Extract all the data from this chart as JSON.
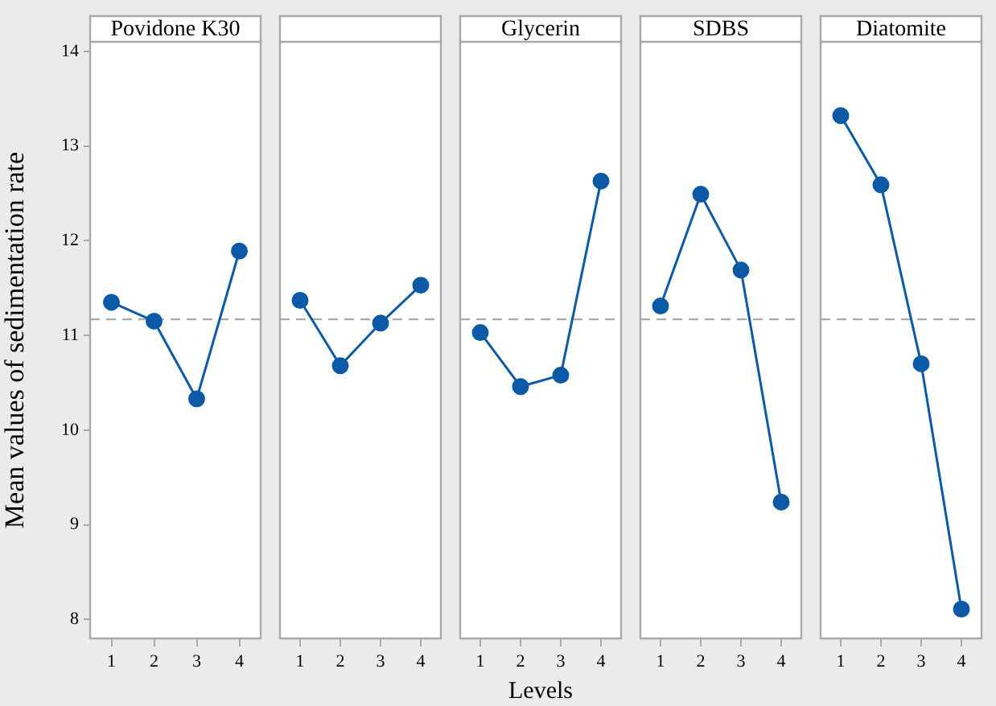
{
  "chart_data": [
    {
      "type": "line",
      "title": "Povidone K30",
      "ylabel": "Mean values of sedimentation rate",
      "categories": [
        "1",
        "2",
        "3",
        "4"
      ],
      "values": [
        11.35,
        11.15,
        10.33,
        11.89
      ],
      "color": "#0c5aa6",
      "ylim": [
        7.8,
        14.1
      ],
      "yticks": [
        8,
        9,
        10,
        11,
        12,
        13,
        14
      ],
      "ref_lines": [
        {
          "axis": "y",
          "value": 11.17,
          "color": "#aaaaaa",
          "line_style": "dashed"
        }
      ],
      "marker": "circle"
    },
    {
      "type": "line",
      "categories": [
        "1",
        "2",
        "3",
        "4"
      ],
      "values": [
        11.37,
        10.68,
        11.13,
        11.53
      ],
      "color": "#0c5aa6",
      "ylim": [
        7.8,
        14.1
      ],
      "yticks": [
        8,
        9,
        10,
        11,
        12,
        13,
        14
      ],
      "ref_lines": [
        {
          "axis": "y",
          "value": 11.17,
          "color": "#aaaaaa",
          "line_style": "dashed"
        }
      ],
      "marker": "circle",
      "tick_labels": "x"
    },
    {
      "type": "line",
      "title": "Glycerin",
      "xlabel": "Levels",
      "categories": [
        "1",
        "2",
        "3",
        "4"
      ],
      "values": [
        11.03,
        10.46,
        10.58,
        12.63
      ],
      "color": "#0c5aa6",
      "ylim": [
        7.8,
        14.1
      ],
      "yticks": [
        8,
        9,
        10,
        11,
        12,
        13,
        14
      ],
      "ref_lines": [
        {
          "axis": "y",
          "value": 11.17,
          "color": "#aaaaaa",
          "line_style": "dashed"
        }
      ],
      "marker": "circle",
      "tick_labels": "x"
    },
    {
      "type": "line",
      "title": "SDBS",
      "categories": [
        "1",
        "2",
        "3",
        "4"
      ],
      "values": [
        11.31,
        12.49,
        11.69,
        9.24
      ],
      "color": "#0c5aa6",
      "ylim": [
        7.8,
        14.1
      ],
      "yticks": [
        8,
        9,
        10,
        11,
        12,
        13,
        14
      ],
      "ref_lines": [
        {
          "axis": "y",
          "value": 11.17,
          "color": "#aaaaaa",
          "line_style": "dashed"
        }
      ],
      "marker": "circle",
      "tick_labels": "x"
    },
    {
      "type": "line",
      "title": "Diatomite",
      "categories": [
        "1",
        "2",
        "3",
        "4"
      ],
      "values": [
        13.32,
        12.59,
        10.7,
        8.11
      ],
      "color": "#0c5aa6",
      "ylim": [
        7.8,
        14.1
      ],
      "yticks": [
        8,
        9,
        10,
        11,
        12,
        13,
        14
      ],
      "ref_lines": [
        {
          "axis": "y",
          "value": 11.17,
          "color": "#aaaaaa",
          "line_style": "dashed"
        }
      ],
      "marker": "circle",
      "tick_labels": "x"
    }
  ]
}
